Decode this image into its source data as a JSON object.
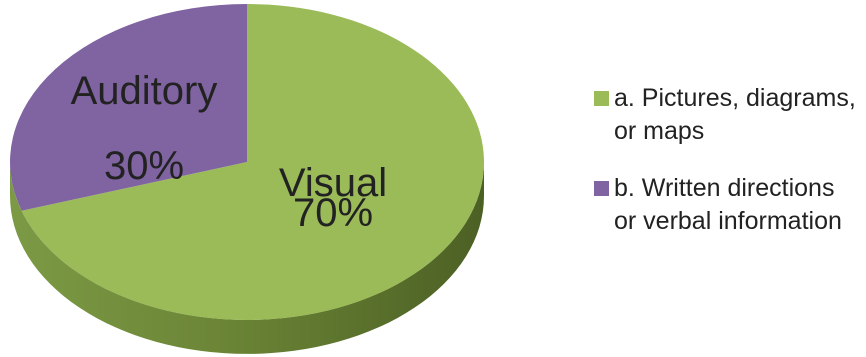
{
  "chart_data": {
    "type": "pie",
    "style": "3d",
    "slices": [
      {
        "slice_label": [
          "Visual",
          "70%"
        ],
        "legend": "a. Pictures, diagrams, or maps",
        "value": 70,
        "color": "#9bbb59",
        "side_color": "#71893f"
      },
      {
        "slice_label": [
          "Auditory",
          "30%"
        ],
        "legend": "b. Written directions or verbal information",
        "value": 30,
        "color": "#8064a2",
        "side_color": "#5c4876"
      }
    ],
    "legend_position": "right"
  }
}
